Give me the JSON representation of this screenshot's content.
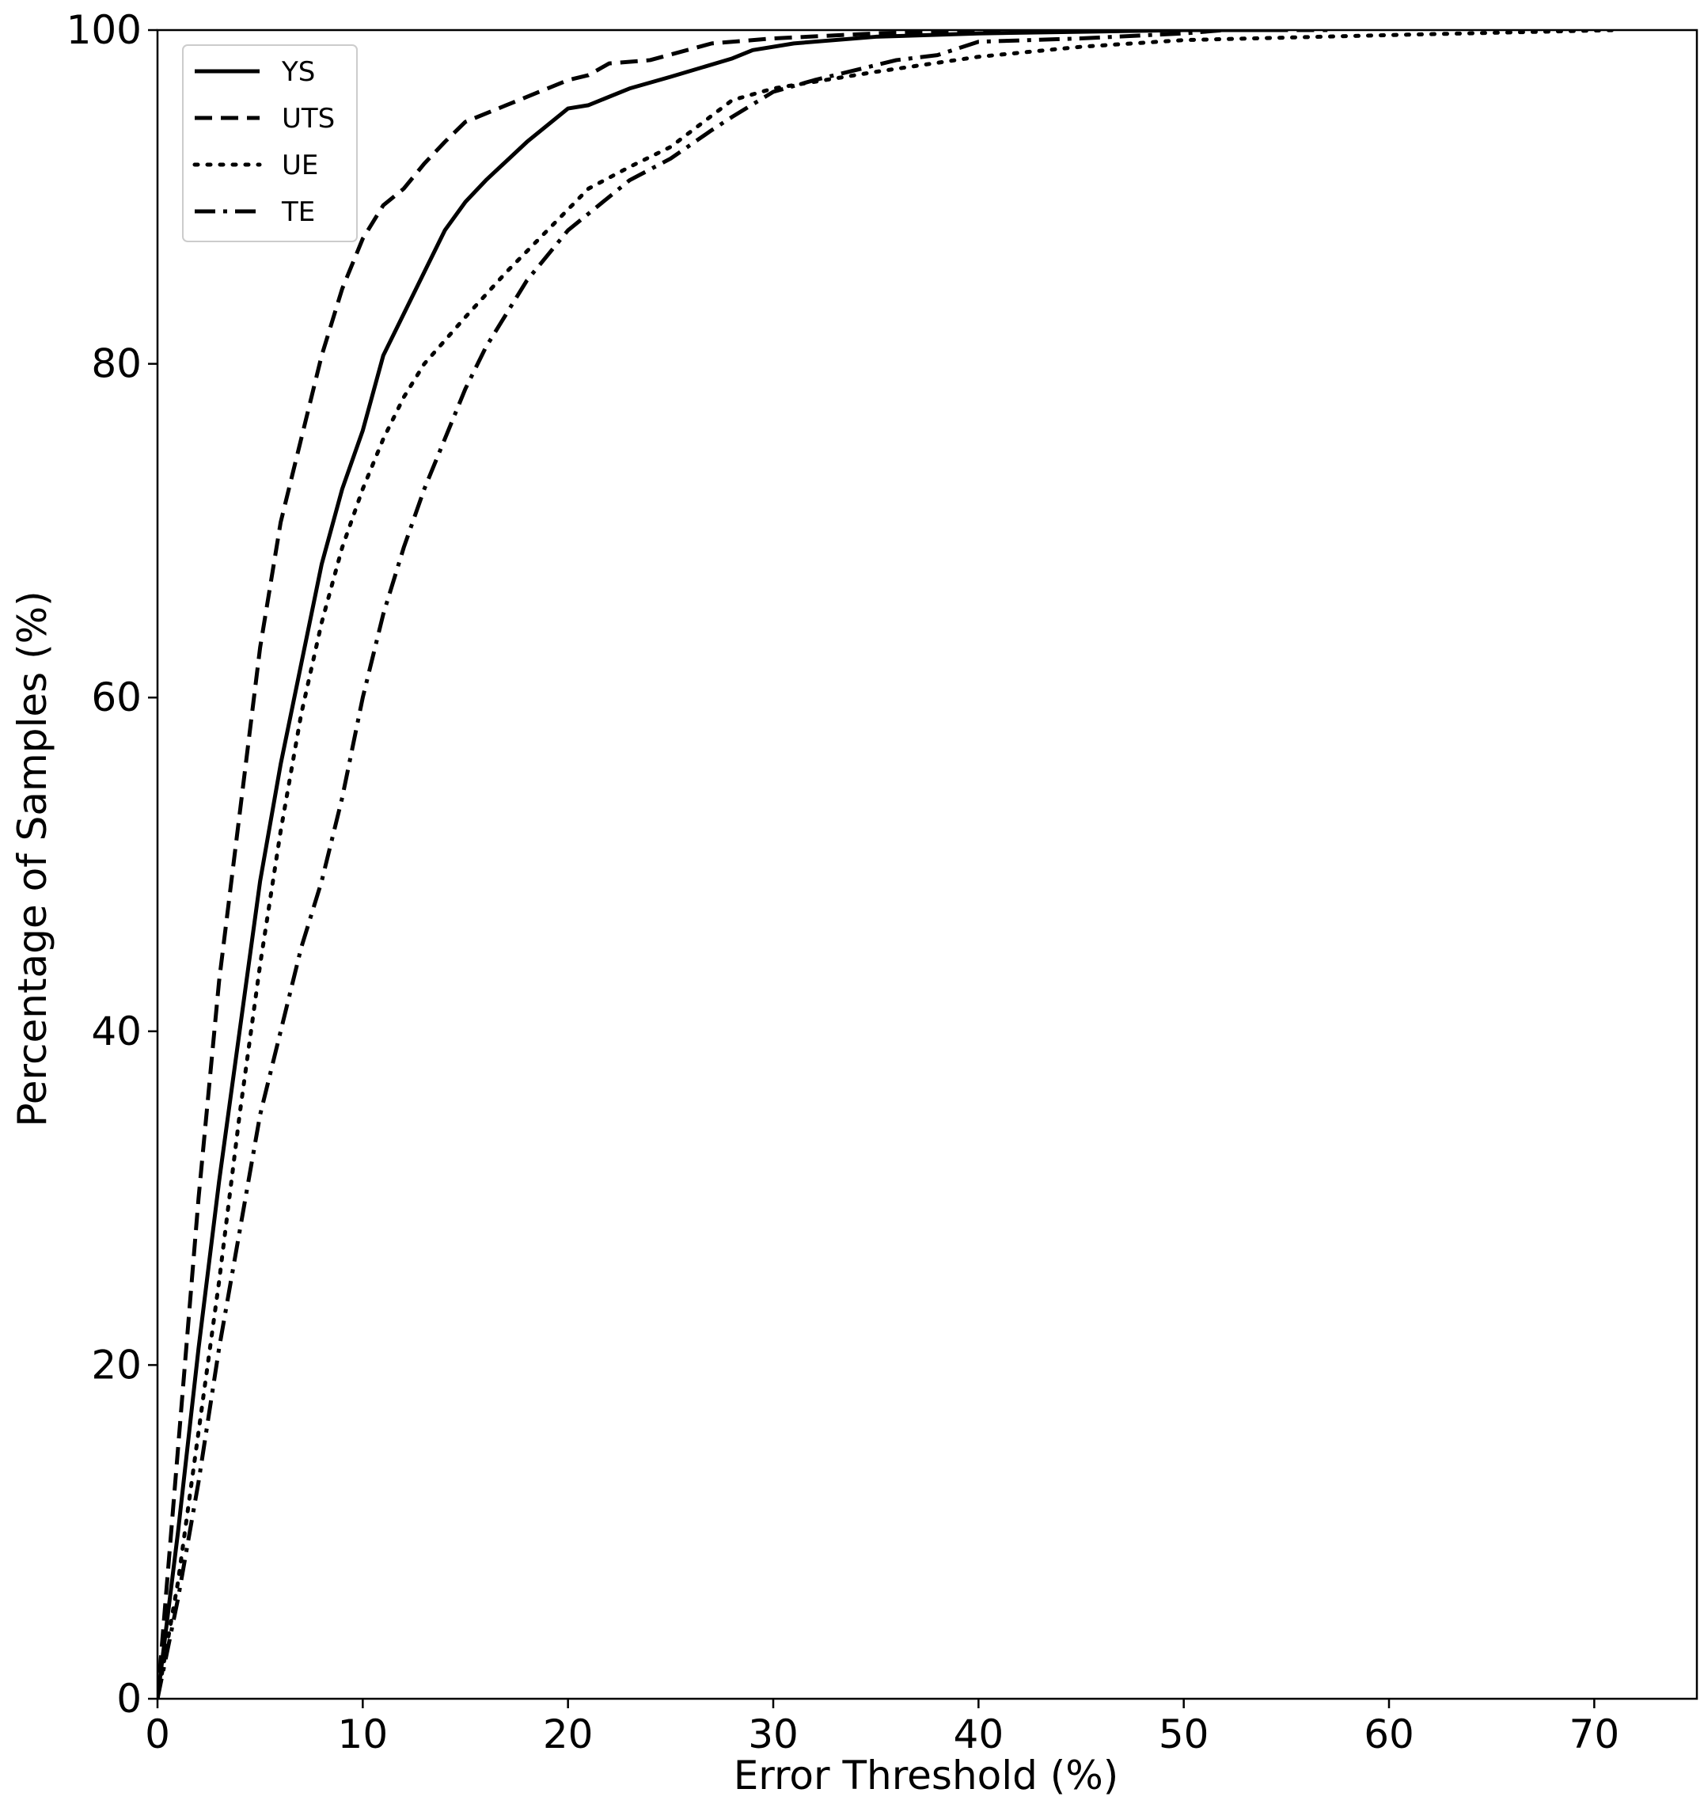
{
  "chart_data": {
    "type": "line",
    "title": "",
    "xlabel": "Error Threshold (%)",
    "ylabel": "Percentage of Samples (%)",
    "xlim": [
      0,
      75
    ],
    "ylim": [
      0,
      100
    ],
    "xticks": [
      0,
      10,
      20,
      30,
      40,
      50,
      60,
      70
    ],
    "yticks": [
      0,
      20,
      40,
      60,
      80,
      100
    ],
    "grid": false,
    "legend_position": "upper-left",
    "line_color": "#000000",
    "series": [
      {
        "name": "YS",
        "style": "solid",
        "x": [
          0,
          1,
          2,
          3,
          4,
          5,
          6,
          7,
          8,
          9,
          10,
          11,
          12,
          13,
          14,
          15,
          16,
          18,
          20,
          21,
          23,
          25,
          28,
          29,
          31,
          35,
          40,
          50,
          55
        ],
        "y": [
          0,
          10,
          21,
          31,
          40,
          49,
          56,
          62,
          68,
          72.5,
          76,
          80.5,
          83,
          85.5,
          88,
          89.7,
          91,
          93.3,
          95.3,
          95.5,
          96.5,
          97.2,
          98.3,
          98.8,
          99.2,
          99.6,
          99.8,
          100,
          100
        ]
      },
      {
        "name": "UTS",
        "style": "dashed",
        "x": [
          0,
          1,
          2,
          3,
          4,
          5,
          6,
          7,
          8,
          9,
          10,
          11,
          12,
          13,
          14,
          15,
          17,
          19,
          20,
          21,
          22,
          24,
          27,
          30,
          35,
          40,
          57
        ],
        "y": [
          0,
          15,
          30,
          43,
          53,
          63,
          70.5,
          75.5,
          80.5,
          84.5,
          87.5,
          89.5,
          90.5,
          92,
          93.3,
          94.5,
          95.5,
          96.5,
          97,
          97.3,
          98,
          98.2,
          99.2,
          99.5,
          99.8,
          100,
          100
        ]
      },
      {
        "name": "UE",
        "style": "dotted",
        "x": [
          0,
          1,
          2,
          3,
          4,
          5,
          6,
          7,
          8,
          9,
          10,
          11,
          12,
          13,
          15,
          17,
          19,
          21,
          23,
          25,
          28,
          30,
          35,
          40,
          45,
          50,
          60,
          71
        ],
        "y": [
          0,
          7,
          16,
          25,
          35,
          44,
          52,
          59,
          64.5,
          69,
          72.5,
          75.5,
          78,
          80,
          82.8,
          85.5,
          88,
          90.5,
          91.8,
          93,
          95.8,
          96.5,
          97.5,
          98.4,
          99,
          99.4,
          99.7,
          100
        ]
      },
      {
        "name": "TE",
        "style": "dashdot",
        "x": [
          0,
          1,
          2,
          3,
          4,
          5,
          6,
          7,
          8,
          9,
          10,
          11,
          12,
          13,
          14,
          15,
          16,
          17,
          18,
          20,
          21,
          23,
          25,
          27,
          28,
          30,
          32,
          36,
          38,
          40,
          45,
          50,
          52
        ],
        "y": [
          0,
          6,
          13,
          21,
          28,
          35,
          40,
          45,
          49,
          54,
          60,
          65,
          69,
          72.5,
          75.5,
          78.5,
          81,
          83,
          85,
          88,
          89,
          91,
          92.3,
          94,
          94.8,
          96.3,
          97,
          98.2,
          98.5,
          99.3,
          99.5,
          99.8,
          100
        ]
      }
    ]
  }
}
